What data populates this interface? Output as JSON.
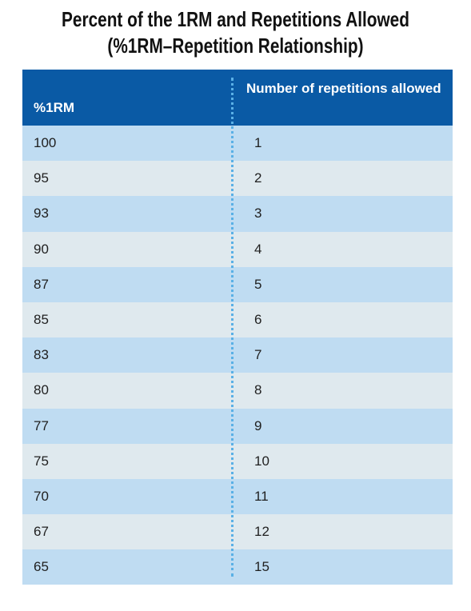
{
  "title": {
    "line1": "Percent of the 1RM and Repetitions Allowed",
    "line2": "(%1RM–Repetition Relationship)"
  },
  "table": {
    "headers": {
      "col1": "%1RM",
      "col2": "Number of repetitions allowed"
    },
    "rows": [
      {
        "pct": "100",
        "reps": "1"
      },
      {
        "pct": "95",
        "reps": "2"
      },
      {
        "pct": "93",
        "reps": "3"
      },
      {
        "pct": "90",
        "reps": "4"
      },
      {
        "pct": "87",
        "reps": "5"
      },
      {
        "pct": "85",
        "reps": "6"
      },
      {
        "pct": "83",
        "reps": "7"
      },
      {
        "pct": "80",
        "reps": "8"
      },
      {
        "pct": "77",
        "reps": "9"
      },
      {
        "pct": "75",
        "reps": "10"
      },
      {
        "pct": "70",
        "reps": "11"
      },
      {
        "pct": "67",
        "reps": "12"
      },
      {
        "pct": "65",
        "reps": "15"
      }
    ]
  },
  "colors": {
    "header_bg": "#0a5aa5",
    "row_odd": "#bfdcf2",
    "row_even": "#dfe9ee",
    "divider": "#5ab0e6"
  }
}
